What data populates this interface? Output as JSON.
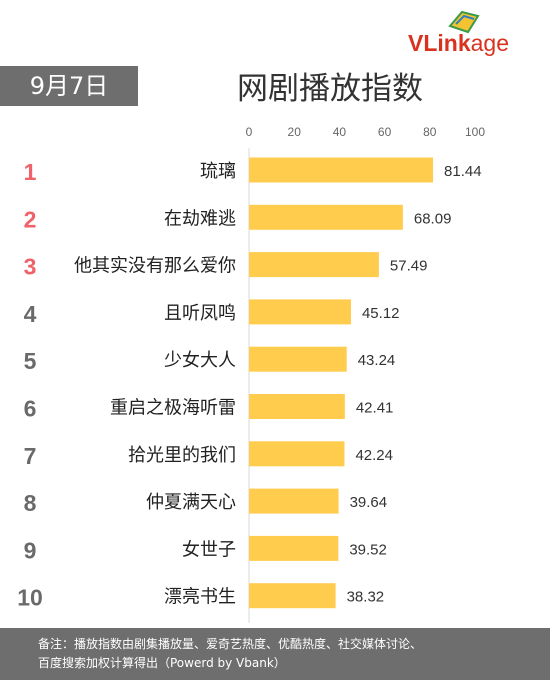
{
  "brand": {
    "prefix": "VL",
    "middle": "ink",
    "suffix": "age"
  },
  "date_label": "9月7日",
  "title": "网剧播放指数",
  "colors": {
    "bar": "#FFCC4E",
    "rank_top": "#F0626A",
    "rank_other": "#6A6A6A",
    "footer_bg": "#6E6E6E"
  },
  "chart_data": {
    "type": "bar",
    "orientation": "horizontal",
    "title": "网剧播放指数",
    "xlim": [
      0,
      100
    ],
    "x_ticks": [
      "0",
      "20",
      "40",
      "60",
      "80",
      "100"
    ],
    "ranks": [
      "1",
      "2",
      "3",
      "4",
      "5",
      "6",
      "7",
      "8",
      "9",
      "10"
    ],
    "categories": [
      "琉璃",
      "在劫难逃",
      "他其实没有那么爱你",
      "且听凤鸣",
      "少女大人",
      "重启之极海听雷",
      "拾光里的我们",
      "仲夏满天心",
      "女世子",
      "漂亮书生"
    ],
    "values": [
      81.44,
      68.09,
      57.49,
      45.12,
      43.24,
      42.41,
      42.24,
      39.64,
      39.52,
      38.32
    ],
    "value_labels": [
      "81.44",
      "68.09",
      "57.49",
      "45.12",
      "43.24",
      "42.41",
      "42.24",
      "39.64",
      "39.52",
      "38.32"
    ]
  },
  "footer": {
    "line1": "备注：播放指数由剧集播放量、爱奇艺热度、优酷热度、社交媒体讨论、",
    "line2": "百度搜索加权计算得出（Powerd by Vbank）"
  }
}
